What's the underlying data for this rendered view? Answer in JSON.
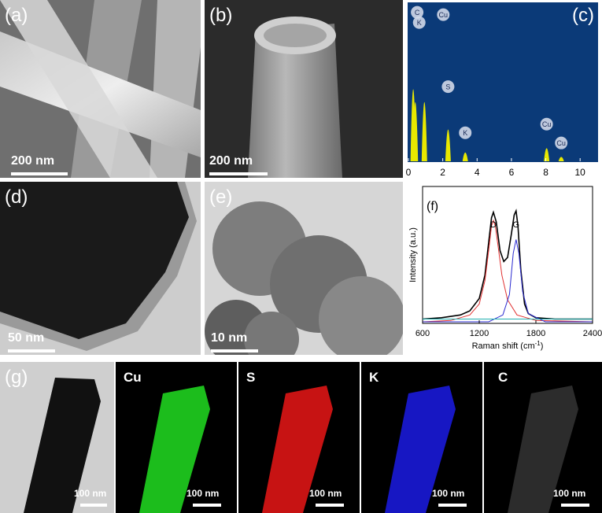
{
  "panels": {
    "a": {
      "label": "(a)",
      "scalebar": "200 nm"
    },
    "b": {
      "label": "(b)",
      "scalebar": "200 nm"
    },
    "c": {
      "label": "(c)"
    },
    "d": {
      "label": "(d)",
      "scalebar": "50 nm"
    },
    "e": {
      "label": "(e)",
      "scalebar": "10 nm"
    },
    "f": {
      "label": "(f)"
    },
    "g": {
      "label": "(g)",
      "scalebar": "100 nm"
    }
  },
  "maps": [
    {
      "element": "Cu",
      "color": "#1fd21f",
      "scalebar": "100 nm"
    },
    {
      "element": "S",
      "color": "#dd1515",
      "scalebar": "100 nm"
    },
    {
      "element": "K",
      "color": "#1a1ad8",
      "scalebar": "100 nm"
    },
    {
      "element": "C",
      "color": "#4a4a4a",
      "scalebar": "100 nm"
    }
  ],
  "colors": {
    "eds_bg": "#0b3a78",
    "eds_peak": "#e8e800"
  },
  "chart_data": [
    {
      "type": "bar",
      "panel": "c",
      "xlim": [
        0,
        11
      ],
      "xticks": [
        0,
        2,
        4,
        6,
        8,
        10
      ],
      "peaks": [
        {
          "label": "C",
          "x": 0.28,
          "y": 0.98
        },
        {
          "label": "K",
          "x": 0.4,
          "y": 0.8
        },
        {
          "label": "Cu",
          "x": 0.93,
          "y": 0.8
        },
        {
          "label": "S",
          "x": 2.31,
          "y": 0.42
        },
        {
          "label": "K",
          "x": 3.31,
          "y": 0.1
        },
        {
          "label": "Cu",
          "x": 8.05,
          "y": 0.16
        },
        {
          "label": "Cu",
          "x": 8.9,
          "y": 0.04
        }
      ]
    },
    {
      "type": "line",
      "panel": "f",
      "xlabel": "Raman shift (cm",
      "xlabel_sup": "-1",
      "xlabel_close": ")",
      "ylabel": "Intensity (a.u.)",
      "xlim": [
        600,
        2400
      ],
      "xticks": [
        600,
        1200,
        1800,
        2400
      ],
      "peak_labels": [
        {
          "text": "D",
          "x": 1350
        },
        {
          "text": "G",
          "x": 1590
        }
      ],
      "series": [
        {
          "color": "#000000",
          "x": [
            600,
            800,
            1000,
            1100,
            1200,
            1260,
            1300,
            1330,
            1350,
            1380,
            1420,
            1460,
            1500,
            1540,
            1570,
            1590,
            1610,
            1640,
            1680,
            1720,
            1800,
            2000,
            2200,
            2400
          ],
          "y": [
            0.02,
            0.03,
            0.05,
            0.08,
            0.17,
            0.34,
            0.58,
            0.76,
            0.8,
            0.73,
            0.52,
            0.44,
            0.47,
            0.64,
            0.78,
            0.81,
            0.7,
            0.38,
            0.13,
            0.06,
            0.03,
            0.02,
            0.02,
            0.02
          ]
        },
        {
          "color": "#e03030",
          "x": [
            600,
            900,
            1100,
            1200,
            1260,
            1300,
            1330,
            1350,
            1370,
            1400,
            1440,
            1500,
            1600,
            1800,
            2400
          ],
          "y": [
            0.0,
            0.01,
            0.05,
            0.13,
            0.3,
            0.52,
            0.7,
            0.74,
            0.7,
            0.55,
            0.34,
            0.16,
            0.05,
            0.01,
            0.0
          ]
        },
        {
          "color": "#2a2ad0",
          "x": [
            600,
            1300,
            1450,
            1520,
            1560,
            1590,
            1620,
            1660,
            1720,
            1900,
            2400
          ],
          "y": [
            0.0,
            0.0,
            0.05,
            0.2,
            0.5,
            0.6,
            0.5,
            0.22,
            0.06,
            0.0,
            0.0
          ]
        },
        {
          "color": "#20b0b0",
          "x": [
            600,
            2400
          ],
          "y": [
            0.02,
            0.02
          ]
        }
      ]
    }
  ]
}
